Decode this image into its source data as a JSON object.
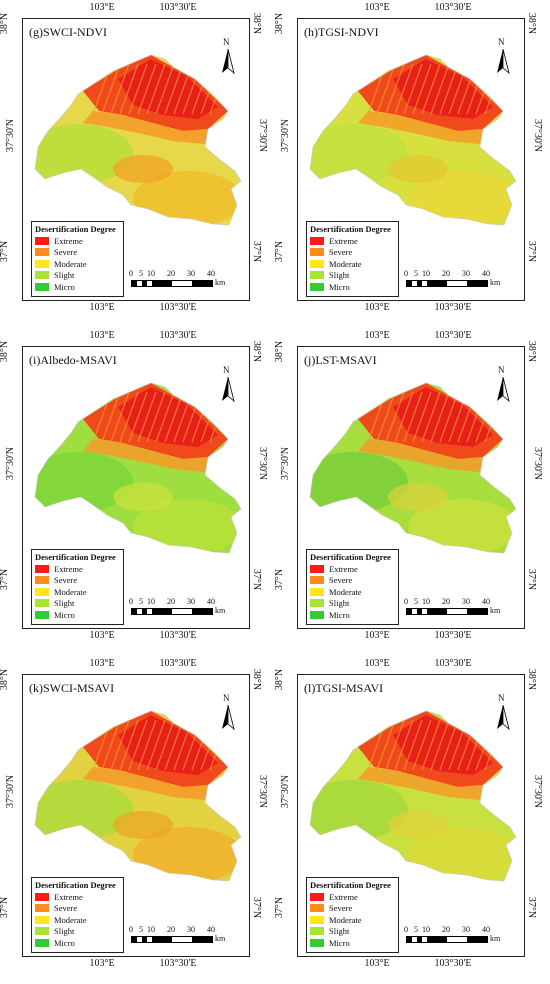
{
  "axes": {
    "lon_top": [
      "103°E",
      "103°30'E"
    ],
    "lon_bottom": [
      "103°E",
      "103°30'E"
    ],
    "lat_left": [
      "38°N",
      "37°30'N",
      "37°N"
    ],
    "lat_right": [
      "38°N",
      "37°30'N",
      "37°N"
    ]
  },
  "north_label": "N",
  "legend": {
    "title": "Desertification Degree",
    "classes": [
      {
        "label": "Extreme",
        "color": "#ff1a1a"
      },
      {
        "label": "Severe",
        "color": "#ff8c1a"
      },
      {
        "label": "Moderate",
        "color": "#ffe61a"
      },
      {
        "label": "Slight",
        "color": "#a6e62e"
      },
      {
        "label": "Micro",
        "color": "#33cc33"
      }
    ]
  },
  "scale_bar": {
    "ticks": [
      "0",
      "5",
      "10",
      "20",
      "30",
      "40"
    ],
    "unit": "km"
  },
  "panels": [
    {
      "title": "(g)SWCI-NDVI",
      "mix": "orange"
    },
    {
      "title": "(h)TGSI-NDVI",
      "mix": "yellow"
    },
    {
      "title": "(i)Albedo-MSAVI",
      "mix": "green"
    },
    {
      "title": "(j)LST-MSAVI",
      "mix": "green2"
    },
    {
      "title": "(k)SWCI-MSAVI",
      "mix": "orange2"
    },
    {
      "title": "(l)TGSI-MSAVI",
      "mix": "yellow2"
    }
  ]
}
